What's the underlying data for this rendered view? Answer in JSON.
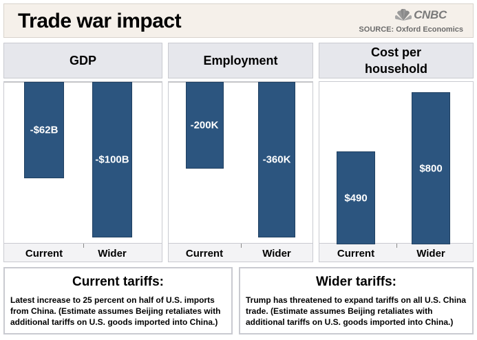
{
  "header": {
    "title": "Trade war impact",
    "logo": "CNBC",
    "source": "SOURCE: Oxford Economics"
  },
  "chart_data": [
    {
      "type": "bar",
      "title": "GDP",
      "categories": [
        "Current",
        "Wider"
      ],
      "values": [
        -62,
        -100
      ],
      "labels": [
        "-$62B",
        "-$100B"
      ],
      "unit": "billion USD",
      "color": "#2c557f"
    },
    {
      "type": "bar",
      "title": "Employment",
      "categories": [
        "Current",
        "Wider"
      ],
      "values": [
        -200,
        -360
      ],
      "labels": [
        "-200K",
        "-360K"
      ],
      "unit": "thousand jobs",
      "color": "#2c557f"
    },
    {
      "type": "bar",
      "title": "Cost per household",
      "categories": [
        "Current",
        "Wider"
      ],
      "values": [
        490,
        800
      ],
      "labels": [
        "$490",
        "$800"
      ],
      "unit": "USD",
      "color": "#2c557f"
    }
  ],
  "notes": [
    {
      "title": "Current tariffs:",
      "body": "Latest increase to 25 percent on half of U.S. imports from China. (Estimate assumes Beijing retaliates with additional tariffs on U.S. goods imported into China.)"
    },
    {
      "title": "Wider tariffs:",
      "body": "Trump has threatened to expand tariffs on all U.S. China trade. (Estimate assumes Beijing retaliates with additional tariffs on U.S. goods imported into China.)"
    }
  ]
}
